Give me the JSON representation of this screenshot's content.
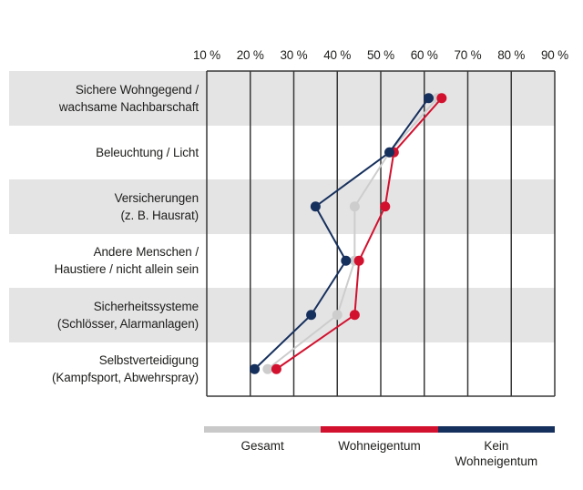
{
  "chart_data": {
    "type": "line",
    "variant": "dot-line comparison chart; categories as horizontal rows, percent scale on top axis",
    "x_axis": {
      "position": "top",
      "unit": "%",
      "range": [
        10,
        90
      ],
      "tick_values": [
        10,
        20,
        30,
        40,
        50,
        60,
        70,
        80,
        90
      ],
      "tick_labels": [
        "10 %",
        "20 %",
        "30 %",
        "40 %",
        "50 %",
        "60 %",
        "70 %",
        "80 %",
        "90 %"
      ]
    },
    "categories": [
      {
        "lines": [
          "Sichere Wohngegend /",
          "wachsame Nachbarschaft"
        ]
      },
      {
        "lines": [
          "Beleuchtung / Licht"
        ]
      },
      {
        "lines": [
          "Versicherungen",
          "(z. B. Hausrat)"
        ]
      },
      {
        "lines": [
          "Andere Menschen /",
          "Haustiere / nicht allein sein"
        ]
      },
      {
        "lines": [
          "Sicherheitssysteme",
          "(Schlösser, Alarmanlagen)"
        ]
      },
      {
        "lines": [
          "Selbstverteidigung",
          "(Kampfsport, Abwehrspray)"
        ]
      }
    ],
    "series": [
      {
        "name": "Gesamt",
        "color": "#cdcdcd",
        "values": [
          63,
          52,
          44,
          44,
          40,
          24
        ]
      },
      {
        "name": "Wohneigentum",
        "color": "#d2112e",
        "values": [
          64,
          53,
          51,
          45,
          44,
          26
        ]
      },
      {
        "name": "Kein Wohneigentum",
        "color": "#16305d",
        "values": [
          61,
          52,
          35,
          42,
          34,
          21
        ]
      }
    ],
    "legend": {
      "position": "bottom",
      "entries": [
        {
          "label": "Gesamt",
          "color": "#c9c9c9"
        },
        {
          "label": "Wohneigentum",
          "color": "#d2112e"
        },
        {
          "label": "Kein Wohneigentum",
          "color": "#16305d"
        }
      ]
    },
    "grid": {
      "vertical_lines_every": 10,
      "line_color": "#383838",
      "horizontal_lines": "top and bottom plot border only"
    },
    "row_band_colors": [
      "#e5e4e5",
      "#ffffff"
    ]
  }
}
